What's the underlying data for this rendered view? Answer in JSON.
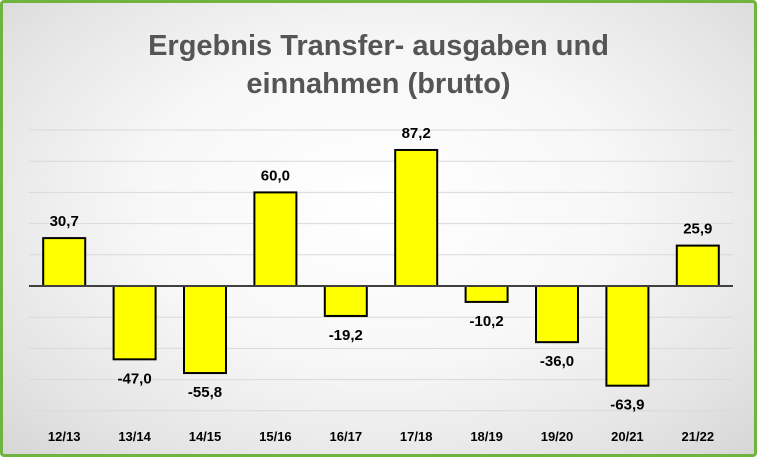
{
  "chart_data": {
    "type": "bar",
    "title_lines": [
      "Ergebnis Transfer- ausgaben und",
      "einnahmen  (brutto)"
    ],
    "categories": [
      "12/13",
      "13/14",
      "14/15",
      "15/16",
      "16/17",
      "17/18",
      "18/19",
      "19/20",
      "20/21",
      "21/22"
    ],
    "values": [
      30.7,
      -47.0,
      -55.8,
      60.0,
      -19.2,
      87.2,
      -10.2,
      -36.0,
      -63.9,
      25.9
    ],
    "data_labels": [
      "30,7",
      "-47,0",
      "-55,8",
      "60,0",
      "-19,2",
      "87,2",
      "-10,2",
      "-36,0",
      "-63,9",
      "25,9"
    ],
    "ylim": [
      -80,
      110
    ],
    "grid": true,
    "legend": "none",
    "bar_color": "#ffff00",
    "bar_outline_color": "#000000"
  }
}
